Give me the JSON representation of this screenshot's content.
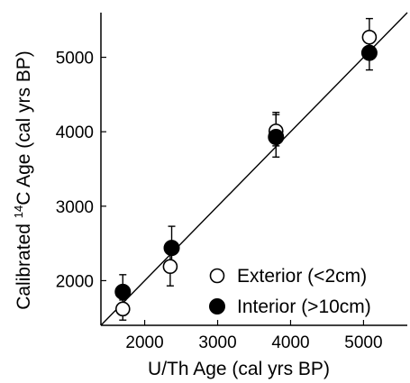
{
  "chart_data": {
    "type": "scatter",
    "xlabel": "U/Th Age (cal yrs BP)",
    "ylabel_main": "Calibrated ",
    "ylabel_sup": "14",
    "ylabel_rest": "C Age (cal yrs BP)",
    "xlim": [
      1400,
      5600
    ],
    "ylim": [
      1400,
      5600
    ],
    "xticks": [
      2000,
      3000,
      4000,
      5000
    ],
    "yticks": [
      2000,
      3000,
      4000,
      5000
    ],
    "xtick_labels": [
      "2000",
      "3000",
      "4000",
      "5000"
    ],
    "ytick_labels": [
      "2000",
      "3000",
      "4000",
      "5000"
    ],
    "grid": false,
    "legend_position": "bottom-right",
    "reference_line": {
      "type": "1:1",
      "from": [
        1400,
        1400
      ],
      "to": [
        5600,
        5600
      ]
    },
    "series": [
      {
        "name": "Exterior (<2cm)",
        "marker": "open-circle",
        "color": "#000000",
        "points": [
          {
            "x": 1700,
            "y": 1620,
            "err_low": 1470,
            "err_high": 1740
          },
          {
            "x": 2350,
            "y": 2190,
            "err_low": 1930,
            "err_high": 2420
          },
          {
            "x": 3800,
            "y": 4010,
            "err_low": 3810,
            "err_high": 4260
          },
          {
            "x": 5080,
            "y": 5270,
            "err_low": 5110,
            "err_high": 5520
          }
        ]
      },
      {
        "name": "Interior (>10cm)",
        "marker": "filled-circle",
        "color": "#000000",
        "points": [
          {
            "x": 1700,
            "y": 1850,
            "err_low": 1700,
            "err_high": 2080
          },
          {
            "x": 2370,
            "y": 2440,
            "err_low": 2240,
            "err_high": 2730
          },
          {
            "x": 3800,
            "y": 3930,
            "err_low": 3660,
            "err_high": 4230
          },
          {
            "x": 5080,
            "y": 5060,
            "err_low": 4830,
            "err_high": 5250
          }
        ]
      }
    ]
  }
}
